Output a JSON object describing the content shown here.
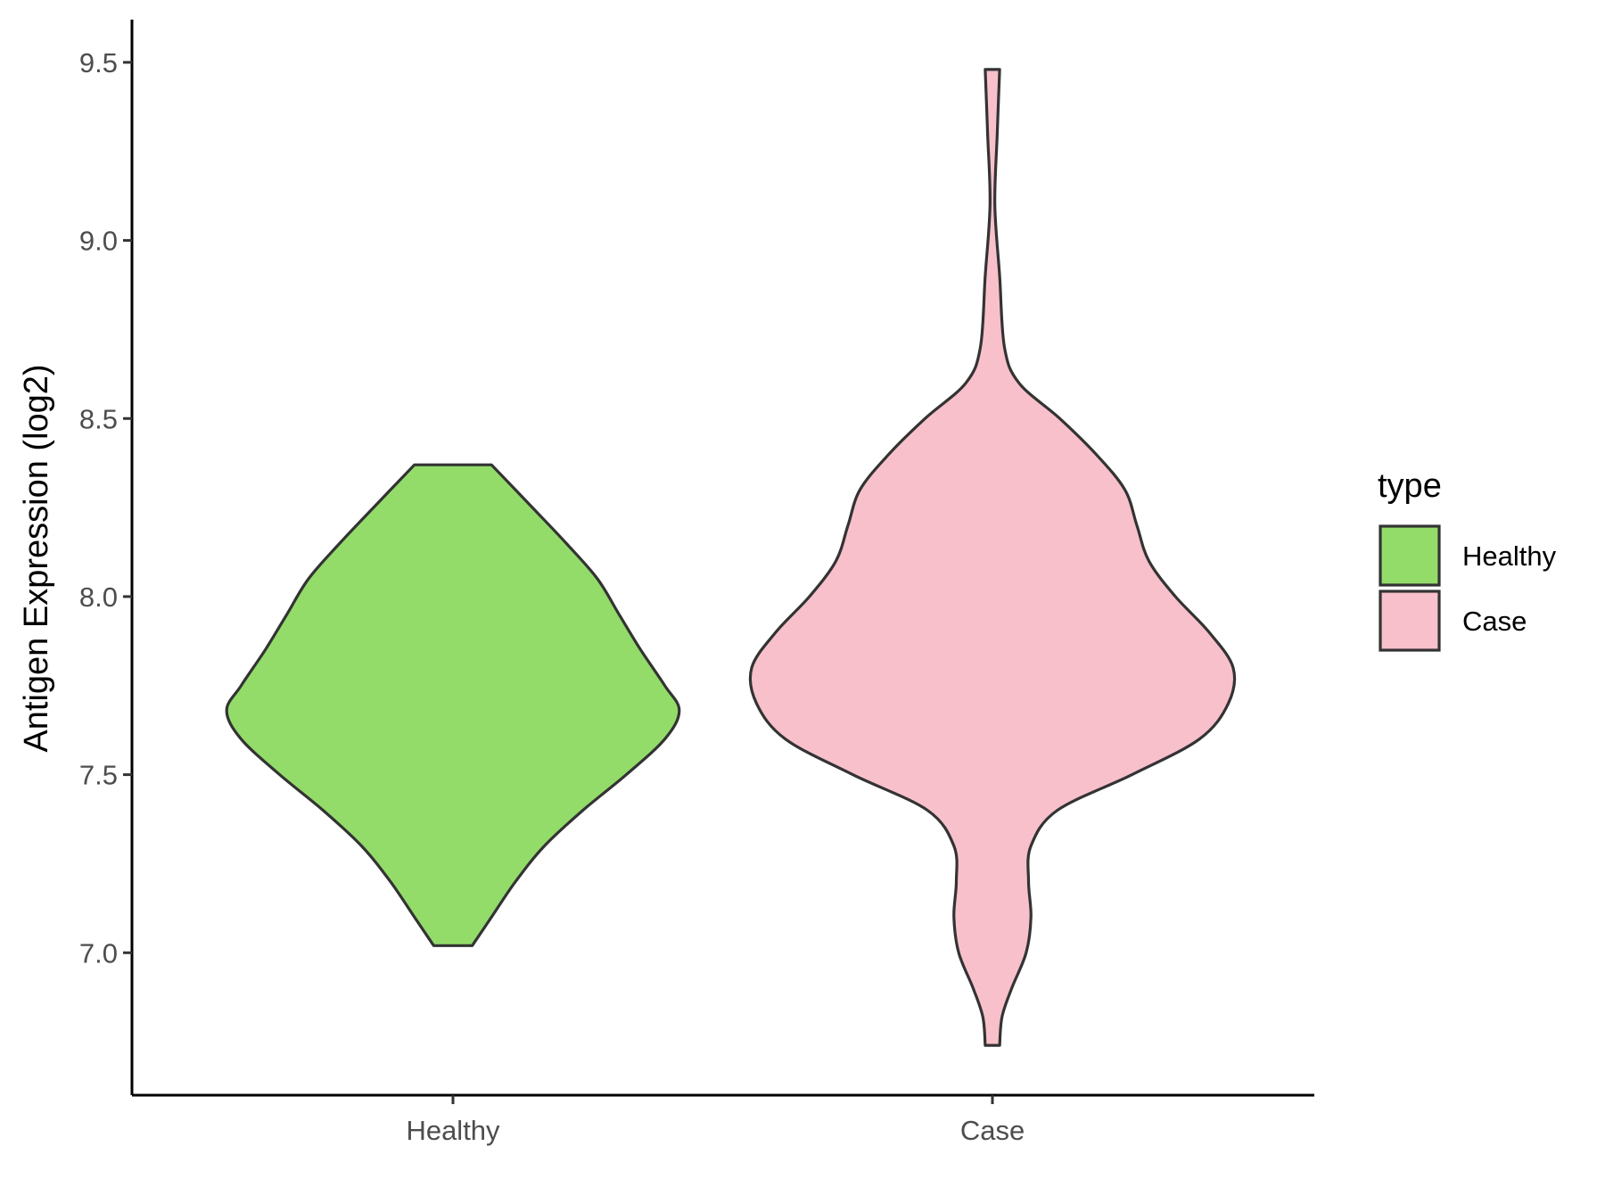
{
  "chart_data": {
    "type": "violin",
    "title": "",
    "xlabel": "",
    "ylabel": "Antigen Expression (log2)",
    "ylim": [
      6.6,
      9.62
    ],
    "yticks": [
      "7.0",
      "7.5",
      "8.0",
      "8.5",
      "9.0",
      "9.5"
    ],
    "categories": [
      "Healthy",
      "Case"
    ],
    "grid": false,
    "legend": {
      "title": "type",
      "position": "right",
      "items": [
        {
          "label": "Healthy",
          "color": "#93dc6a"
        },
        {
          "label": "Case",
          "color": "#f8c0cb"
        }
      ]
    },
    "series": [
      {
        "category": "Healthy",
        "color": "#93dc6a",
        "min": 7.02,
        "max": 8.37,
        "density_profile": [
          [
            7.02,
            0.08
          ],
          [
            7.1,
            0.16
          ],
          [
            7.2,
            0.26
          ],
          [
            7.3,
            0.38
          ],
          [
            7.4,
            0.54
          ],
          [
            7.5,
            0.72
          ],
          [
            7.6,
            0.88
          ],
          [
            7.68,
            0.94
          ],
          [
            7.75,
            0.88
          ],
          [
            7.85,
            0.78
          ],
          [
            7.95,
            0.69
          ],
          [
            8.05,
            0.6
          ],
          [
            8.15,
            0.47
          ],
          [
            8.25,
            0.33
          ],
          [
            8.37,
            0.16
          ]
        ]
      },
      {
        "category": "Case",
        "color": "#f8c0cb",
        "min": 6.74,
        "max": 9.48,
        "density_profile": [
          [
            6.74,
            0.03
          ],
          [
            6.82,
            0.04
          ],
          [
            6.9,
            0.08
          ],
          [
            7.0,
            0.14
          ],
          [
            7.1,
            0.16
          ],
          [
            7.2,
            0.15
          ],
          [
            7.3,
            0.16
          ],
          [
            7.4,
            0.27
          ],
          [
            7.5,
            0.58
          ],
          [
            7.6,
            0.86
          ],
          [
            7.7,
            0.98
          ],
          [
            7.8,
            1.0
          ],
          [
            7.9,
            0.9
          ],
          [
            8.0,
            0.76
          ],
          [
            8.1,
            0.65
          ],
          [
            8.2,
            0.6
          ],
          [
            8.3,
            0.55
          ],
          [
            8.4,
            0.43
          ],
          [
            8.5,
            0.28
          ],
          [
            8.6,
            0.11
          ],
          [
            8.7,
            0.05
          ],
          [
            8.9,
            0.03
          ],
          [
            9.1,
            0.01
          ],
          [
            9.3,
            0.02
          ],
          [
            9.48,
            0.03
          ]
        ]
      }
    ]
  }
}
